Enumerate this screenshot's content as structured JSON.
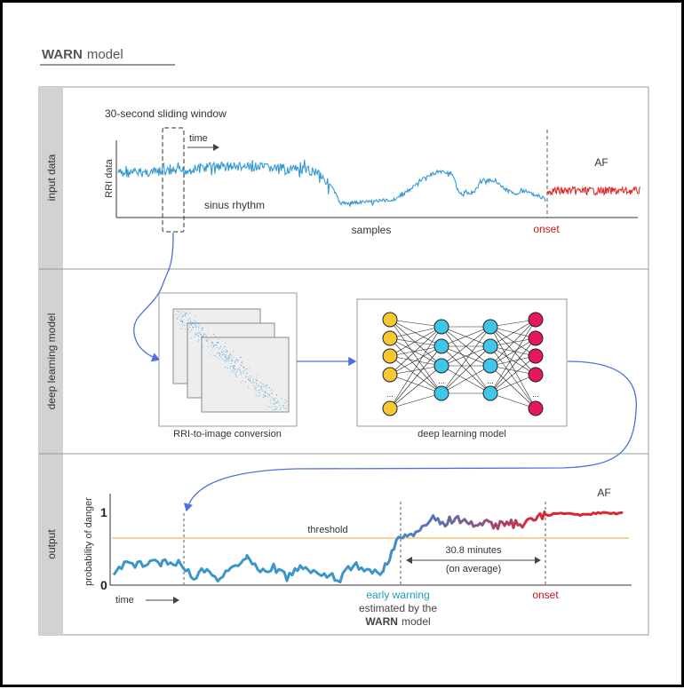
{
  "header": {
    "title_bold": "WARN",
    "title_rest": "model"
  },
  "sections": {
    "input": "input data",
    "model": "deep learning model",
    "output": "output"
  },
  "input_panel": {
    "window_label": "30-second sliding window",
    "time_label": "time",
    "y_label": "RRI data",
    "x_label": "samples",
    "sinus_label": "sinus rhythm",
    "af_label": "AF",
    "onset_label": "onset"
  },
  "model_panel": {
    "conversion_label": "RRI-to-image conversion",
    "model_label": "deep learning model",
    "ellipsis": "..."
  },
  "output_panel": {
    "y_label": "probability of danger",
    "tick_top": "1",
    "tick_bottom": "0",
    "threshold_label": "threshold",
    "af_label": "AF",
    "interval_value": "30.8 minutes",
    "interval_note": "(on average)",
    "time_label": "time",
    "early_warning": "early warning",
    "estimated_by": "estimated by the",
    "model_name": "WARN",
    "model_suffix": "model",
    "onset_label": "onset"
  },
  "colors": {
    "sinus": "#3498d4",
    "af": "#e02a2a",
    "threshold": "#f5c46e",
    "warning_text": "#1c9fb8",
    "onset_text": "#c9151e",
    "arrow": "#4f6fe0",
    "sidebar": "#d2d2d2",
    "node_yellow": "#f7c832",
    "node_cyan": "#3fc7ea",
    "node_red": "#e6175c"
  }
}
